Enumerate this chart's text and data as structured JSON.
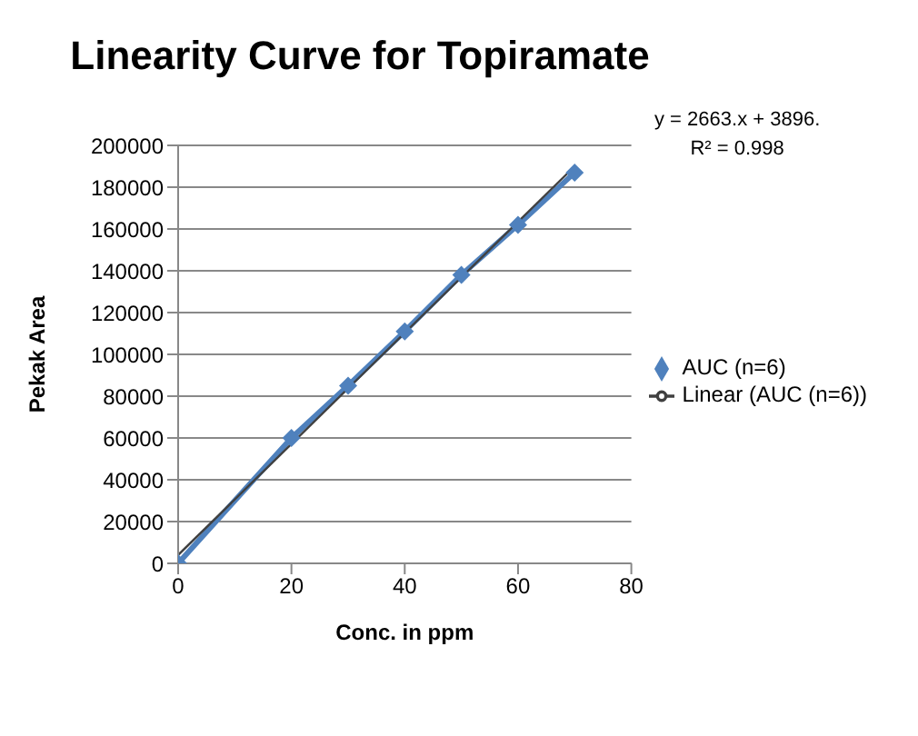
{
  "chart_data": {
    "type": "line",
    "title": "Linearity Curve for Topiramate",
    "xlabel": "Conc. in ppm",
    "ylabel": "Pekak Area",
    "annotations": [
      "y = 2663.x + 3896.",
      "R² = 0.998"
    ],
    "x": [
      0,
      20,
      30,
      40,
      50,
      60,
      70
    ],
    "series": [
      {
        "name": "AUC (n=6)",
        "color": "#4f81bd",
        "values": [
          0,
          60000,
          85000,
          111000,
          138000,
          162000,
          187000
        ],
        "marker": "diamond"
      },
      {
        "name": "Linear (AUC (n=6))",
        "color": "#404040",
        "type": "line",
        "x": [
          0,
          70
        ],
        "values": [
          4000,
          190000
        ],
        "marker": "none"
      }
    ],
    "xlim": [
      0,
      80
    ],
    "xticks": [
      0,
      20,
      40,
      60,
      80
    ],
    "ylim": [
      0,
      200000
    ],
    "yticks": [
      0,
      20000,
      40000,
      60000,
      80000,
      100000,
      120000,
      140000,
      160000,
      180000,
      200000
    ],
    "grid": "y",
    "legend": "right",
    "line_style": "solid"
  }
}
